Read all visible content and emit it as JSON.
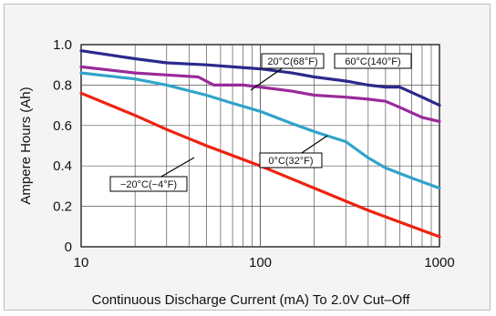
{
  "chart_data": {
    "type": "line",
    "xlabel": "Continuous Discharge Current (mA) To 2.0V Cut–Off",
    "ylabel": "Ampere Hours (Ah)",
    "x_scale": "log",
    "xlim": [
      10,
      1000
    ],
    "ylim": [
      0,
      1.0
    ],
    "x_ticks": [
      "10",
      "100",
      "1000"
    ],
    "y_ticks": [
      "0",
      "0.2",
      "0.4",
      "0.6",
      "0.8",
      "1.0"
    ],
    "grid": true,
    "series": [
      {
        "name": "60°C(140°F)",
        "color": "#2a2a8c",
        "x": [
          10,
          20,
          30,
          50,
          70,
          100,
          150,
          200,
          300,
          400,
          500,
          600,
          800,
          1000
        ],
        "y": [
          0.97,
          0.93,
          0.91,
          0.9,
          0.89,
          0.88,
          0.86,
          0.84,
          0.82,
          0.8,
          0.79,
          0.79,
          0.74,
          0.7
        ]
      },
      {
        "name": "20°C(68°F)",
        "color": "#9a2a9a",
        "x": [
          10,
          20,
          30,
          45,
          55,
          65,
          80,
          100,
          150,
          200,
          300,
          400,
          500,
          600,
          800,
          1000
        ],
        "y": [
          0.89,
          0.86,
          0.85,
          0.84,
          0.8,
          0.8,
          0.8,
          0.79,
          0.77,
          0.75,
          0.74,
          0.73,
          0.72,
          0.69,
          0.64,
          0.62
        ]
      },
      {
        "name": "0°C(32°F)",
        "color": "#31a3c9",
        "x": [
          10,
          20,
          30,
          50,
          70,
          100,
          150,
          200,
          300,
          400,
          500,
          700,
          1000
        ],
        "y": [
          0.86,
          0.83,
          0.8,
          0.75,
          0.71,
          0.67,
          0.61,
          0.57,
          0.52,
          0.44,
          0.39,
          0.34,
          0.29
        ]
      },
      {
        "name": "−20°C(−4°F)",
        "color": "#ee2211",
        "x": [
          10,
          20,
          30,
          50,
          100,
          200,
          400,
          700,
          1000
        ],
        "y": [
          0.76,
          0.65,
          0.58,
          0.5,
          0.4,
          0.29,
          0.18,
          0.1,
          0.05
        ]
      }
    ],
    "labels": [
      {
        "series": 0,
        "text": "60°C(140°F)"
      },
      {
        "series": 1,
        "text": "20°C(68°F)"
      },
      {
        "series": 2,
        "text": "0°C(32°F)"
      },
      {
        "series": 3,
        "text": "−20°C(−4°F)"
      }
    ]
  }
}
